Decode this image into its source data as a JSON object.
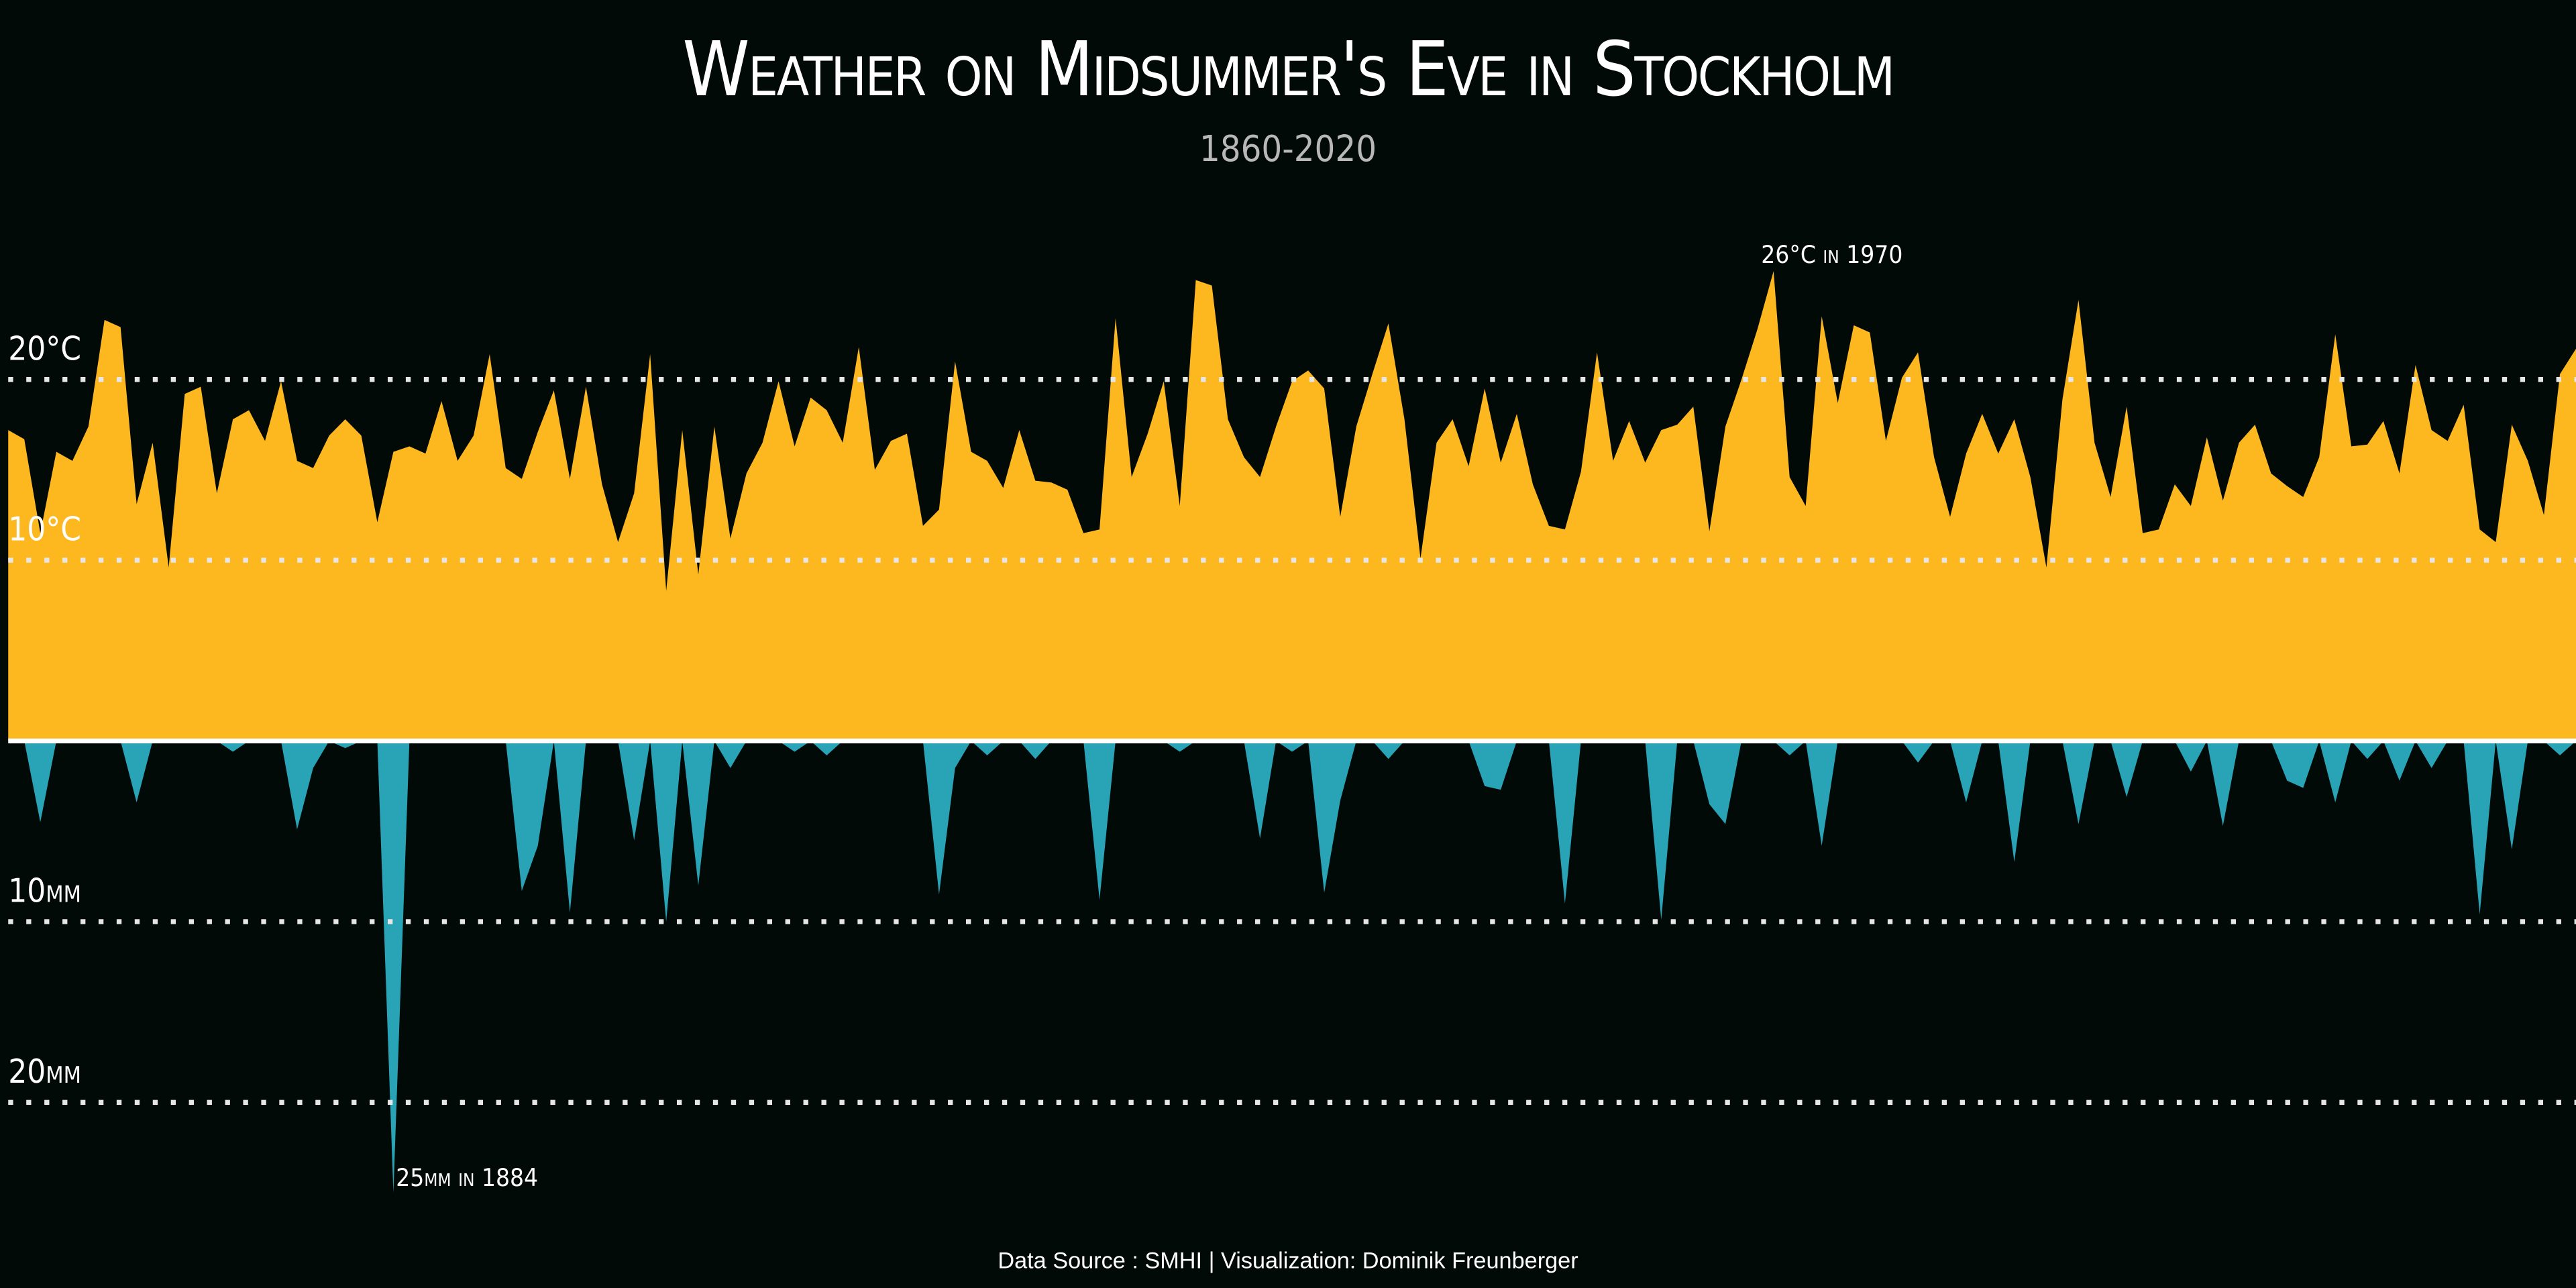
{
  "chart_data": {
    "type": "area",
    "title": "Weather on Midsummer's Eve in Stockholm",
    "subtitle": "1860-2020",
    "source": "Data Source : SMHI | Visualization: Dominik Freunberger",
    "annotations": [
      "26°C in 1970",
      "25mm in 1884"
    ],
    "x": [
      1860,
      1861,
      1862,
      1863,
      1864,
      1865,
      1866,
      1867,
      1868,
      1869,
      1870,
      1871,
      1872,
      1873,
      1874,
      1875,
      1876,
      1877,
      1878,
      1879,
      1880,
      1881,
      1882,
      1883,
      1884,
      1885,
      1886,
      1887,
      1888,
      1889,
      1890,
      1891,
      1892,
      1893,
      1894,
      1895,
      1896,
      1897,
      1898,
      1899,
      1900,
      1901,
      1902,
      1903,
      1904,
      1905,
      1906,
      1907,
      1908,
      1909,
      1910,
      1911,
      1912,
      1913,
      1914,
      1915,
      1916,
      1917,
      1918,
      1919,
      1920,
      1921,
      1922,
      1923,
      1924,
      1925,
      1926,
      1927,
      1928,
      1929,
      1930,
      1931,
      1932,
      1933,
      1934,
      1935,
      1936,
      1937,
      1938,
      1939,
      1940,
      1941,
      1942,
      1943,
      1944,
      1945,
      1946,
      1947,
      1948,
      1949,
      1950,
      1951,
      1952,
      1953,
      1954,
      1955,
      1956,
      1957,
      1958,
      1959,
      1960,
      1961,
      1962,
      1963,
      1964,
      1965,
      1966,
      1967,
      1968,
      1969,
      1970,
      1971,
      1972,
      1973,
      1974,
      1975,
      1976,
      1977,
      1978,
      1979,
      1980,
      1981,
      1982,
      1983,
      1984,
      1985,
      1986,
      1987,
      1988,
      1989,
      1990,
      1991,
      1992,
      1993,
      1994,
      1995,
      1996,
      1997,
      1998,
      1999,
      2000,
      2001,
      2002,
      2003,
      2004,
      2005,
      2006,
      2007,
      2008,
      2009,
      2010,
      2011,
      2012,
      2013,
      2014,
      2015,
      2016,
      2017,
      2018,
      2019,
      2020
    ],
    "xlim": [
      1860,
      2020
    ],
    "series": [
      {
        "color": "#fdb71f",
        "values": [
          17.2,
          16.7,
          11.5,
          16,
          15.5,
          17.4,
          23.3,
          22.9,
          13.1,
          16.5,
          9.6,
          19.2,
          19.6,
          13.7,
          17.8,
          18.3,
          16.6,
          19.9,
          15.5,
          15.1,
          16.9,
          17.8,
          16.9,
          12.1,
          16,
          16.3,
          15.9,
          18.8,
          15.5,
          16.9,
          21.4,
          15.1,
          14.5,
          17.1,
          19.4,
          14.5,
          19.6,
          14.2,
          11,
          13.7,
          21.4,
          8.3,
          17.2,
          9.2,
          17.4,
          11.2,
          14.8,
          16.5,
          19.9,
          16.3,
          19,
          18.3,
          16.5,
          21.8,
          15,
          16.6,
          17,
          11.9,
          12.8,
          21,
          16,
          15.5,
          14,
          17.2,
          14.4,
          14.3,
          13.9,
          11.5,
          11.7,
          23.4,
          14.6,
          17,
          19.9,
          13,
          25.5,
          25.2,
          17.8,
          15.7,
          14.6,
          17.4,
          19.9,
          20.5,
          19.5,
          12.4,
          17.4,
          20.3,
          23.1,
          17.8,
          10.1,
          16.5,
          17.8,
          15.2,
          19.5,
          15.4,
          18.1,
          14.2,
          11.9,
          11.7,
          14.9,
          21.5,
          15.5,
          17.7,
          15.4,
          17.2,
          17.5,
          18.5,
          11.6,
          17.4,
          20,
          22.8,
          26,
          14.6,
          13,
          23.5,
          18.7,
          23,
          22.6,
          16.6,
          20.1,
          21.5,
          15.7,
          12.4,
          15.9,
          18.1,
          15.9,
          17.8,
          14.6,
          9.6,
          18.9,
          24.4,
          16.5,
          13.5,
          18.5,
          11.5,
          11.7,
          14.2,
          13,
          16.8,
          13.3,
          16.5,
          17.5,
          14.8,
          14.1,
          13.5,
          15.7,
          22.5,
          16.3,
          16.4,
          17.7,
          14.8,
          20.8,
          17.2,
          16.6,
          18.6,
          11.7,
          11,
          17.5,
          15.5,
          12.5,
          20.3,
          21.7
        ]
      },
      {
        "color": "#29a3b6",
        "axis": "y2",
        "values": [
          0,
          0,
          4.5,
          0,
          0,
          0,
          0,
          0,
          3.4,
          0,
          0,
          0,
          0,
          0,
          0.6,
          0,
          0,
          0,
          4.9,
          1.5,
          0,
          0.4,
          0,
          0,
          25,
          0,
          0,
          0,
          0,
          0,
          0,
          0,
          8.3,
          5.8,
          0,
          9.5,
          0,
          0,
          0,
          5.5,
          0,
          10,
          0,
          8,
          0,
          1.5,
          0,
          0,
          0,
          0.6,
          0,
          0.8,
          0,
          0,
          0,
          0,
          0,
          0,
          8.5,
          1.5,
          0,
          0.8,
          0,
          0,
          1,
          0,
          0,
          0,
          8.8,
          0,
          0,
          0,
          0,
          0.6,
          0,
          0,
          0,
          0,
          5.4,
          0,
          0.6,
          0,
          8.4,
          3.3,
          0,
          0,
          1,
          0,
          0,
          0,
          0,
          0,
          2.5,
          2.7,
          0,
          0,
          0,
          9,
          0,
          0,
          0,
          0,
          0,
          9.9,
          0,
          0,
          3.5,
          4.6,
          0,
          0,
          0,
          0.8,
          0,
          5.8,
          0,
          0,
          0,
          0,
          0,
          1.2,
          0,
          0,
          3.4,
          0,
          0,
          6.7,
          0,
          0,
          0,
          4.6,
          0,
          0,
          3.1,
          0,
          0,
          0,
          1.7,
          0,
          4.7,
          0,
          0,
          0,
          2.2,
          2.6,
          0,
          3.4,
          0,
          1,
          0,
          2.2,
          0,
          1.5,
          0,
          0,
          9.6,
          0,
          6,
          0,
          0,
          0.8,
          0
        ]
      }
    ],
    "ylim": [
      0,
      26
    ],
    "yticks": [
      {
        "value": 10,
        "label": "10°C"
      },
      {
        "value": 20,
        "label": "20°C"
      }
    ],
    "y2lim": [
      0,
      25
    ],
    "y2ticks": [
      {
        "value": 10,
        "label": "10mm"
      },
      {
        "value": 20,
        "label": "20mm"
      }
    ],
    "y2_inverted": true,
    "grid": true
  }
}
